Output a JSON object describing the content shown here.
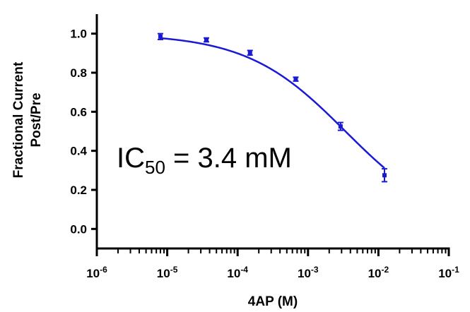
{
  "chart_data": {
    "type": "scatter",
    "xlabel": "4AP (M)",
    "ylabel_lines": [
      "Fractional Current",
      "Post/Pre"
    ],
    "x_scale": "log",
    "xlim": [
      1e-06,
      0.1
    ],
    "ylim": [
      -0.1,
      1.1
    ],
    "x_tick_labels": [
      {
        "base": "10",
        "exp": "-6"
      },
      {
        "base": "10",
        "exp": "-5"
      },
      {
        "base": "10",
        "exp": "-4"
      },
      {
        "base": "10",
        "exp": "-3"
      },
      {
        "base": "10",
        "exp": "-2"
      },
      {
        "base": "10",
        "exp": "-1"
      }
    ],
    "y_ticks": [
      0.0,
      0.2,
      0.4,
      0.6,
      0.8,
      1.0
    ],
    "y_tick_labels": [
      "0.0",
      "0.2",
      "0.4",
      "0.6",
      "0.8",
      "1.0"
    ],
    "series": [
      {
        "color": "#1a1ad6",
        "points": [
          {
            "x": 8e-06,
            "y": 0.985,
            "err": 0.015
          },
          {
            "x": 3.6e-05,
            "y": 0.968,
            "err": 0.01
          },
          {
            "x": 0.00015,
            "y": 0.902,
            "err": 0.012
          },
          {
            "x": 0.00067,
            "y": 0.767,
            "err": 0.01
          },
          {
            "x": 0.0029,
            "y": 0.525,
            "err": 0.02
          },
          {
            "x": 0.0122,
            "y": 0.275,
            "err": 0.033
          }
        ],
        "fit": {
          "model": "hill",
          "ic50": 0.0034,
          "top": 1.0,
          "bottom": 0.0,
          "hill": 0.62
        }
      }
    ],
    "annotation": {
      "prefix": "IC",
      "subscript": "50",
      "suffix": " = 3.4 mM"
    },
    "grid": false,
    "legend": "none"
  }
}
